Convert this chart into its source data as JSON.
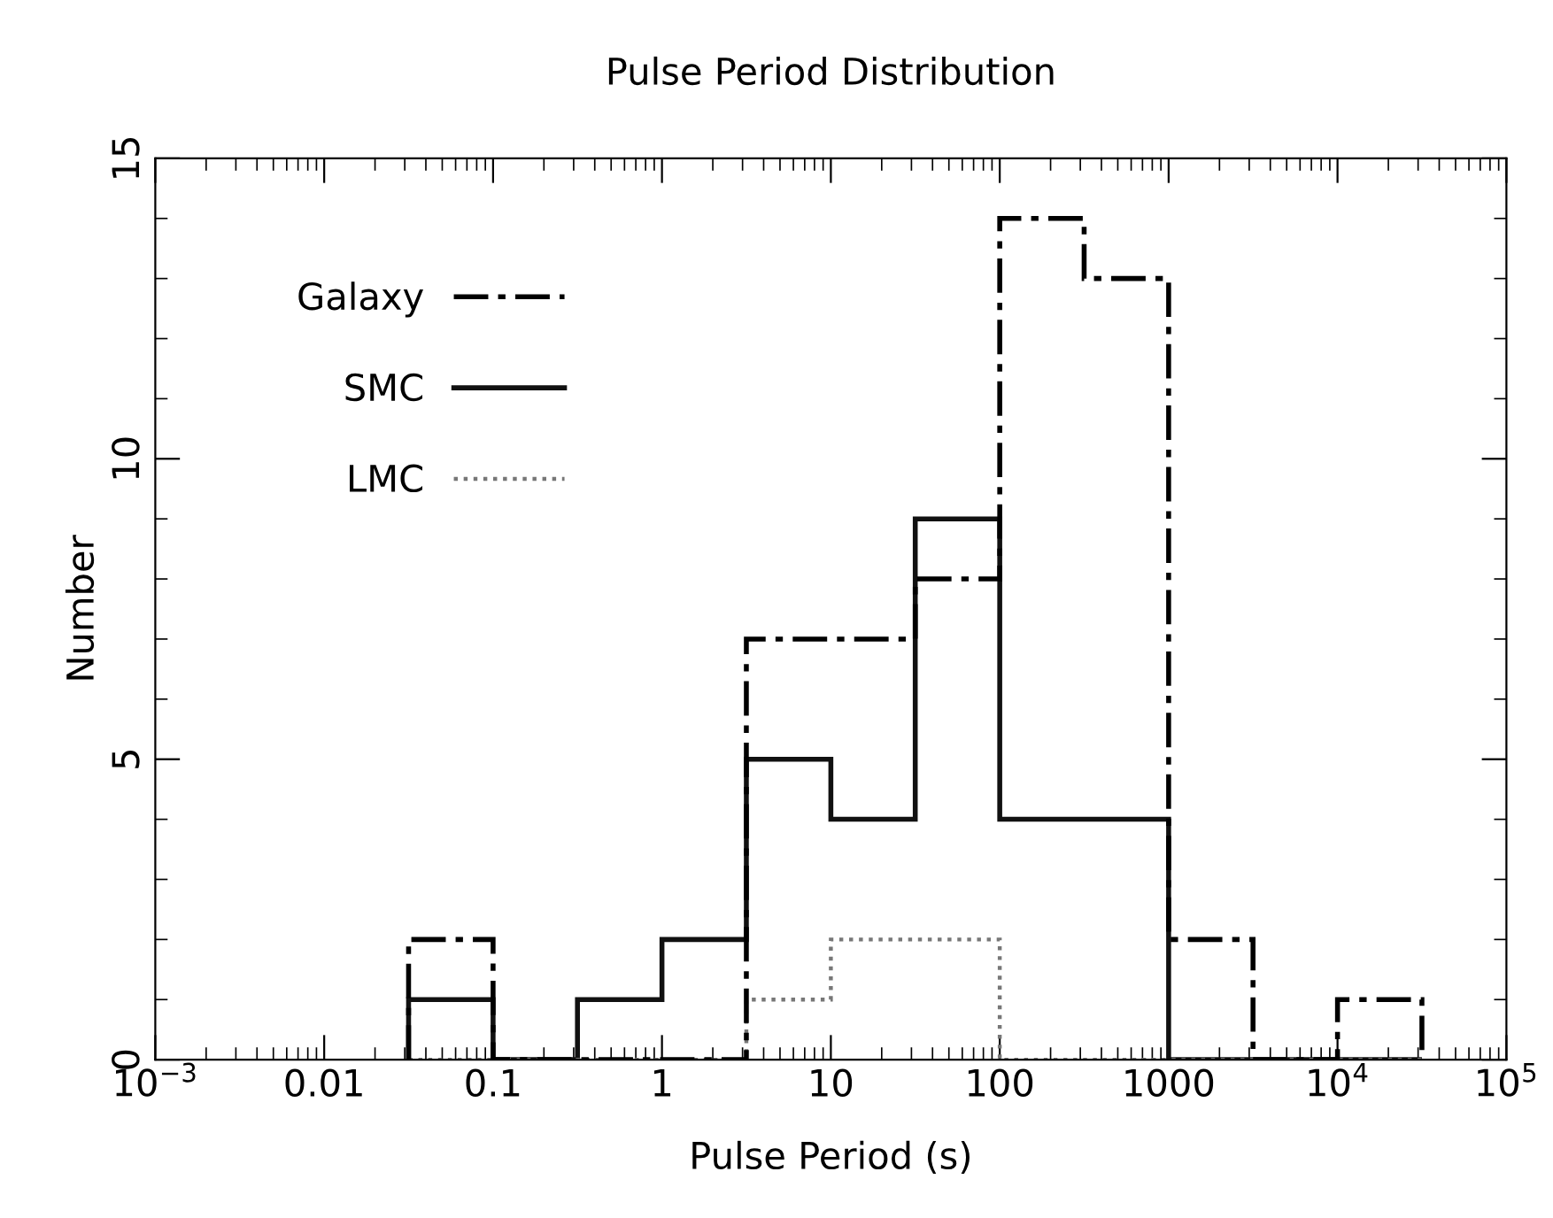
{
  "chart_data": {
    "type": "histogram",
    "title": "Pulse Period Distribution",
    "xlabel": "Pulse Period (s)",
    "ylabel": "Number",
    "log": "x",
    "bins": [
      0.0316,
      0.1,
      0.316,
      1,
      3.16,
      10,
      31.6,
      100,
      316,
      1000,
      3160,
      10000,
      31600
    ],
    "series": [
      {
        "name": "Galaxy",
        "color": "#000000",
        "line_style": "dashed",
        "values": [
          2,
          0,
          0,
          0,
          7,
          7,
          8,
          14,
          13,
          2,
          0,
          1
        ]
      },
      {
        "name": "SMC",
        "color": "#111111",
        "line_style": "solid",
        "values": [
          1,
          0,
          1,
          2,
          5,
          4,
          9,
          4,
          4,
          0,
          0,
          0
        ]
      },
      {
        "name": "LMC",
        "color": "#777777",
        "line_style": "dotted",
        "values": [
          0,
          0,
          0,
          0,
          1,
          2,
          2,
          0,
          0,
          0,
          0,
          0
        ]
      }
    ],
    "xlim": [
      0.001,
      100000
    ],
    "ylim": [
      0,
      15
    ],
    "xticks": [
      {
        "value": 0.001,
        "label": "10$^{−3}$"
      },
      0.01,
      0.1,
      1,
      10,
      100,
      1000,
      {
        "value": 10000,
        "label": "10$^{4}$"
      },
      {
        "value": 100000,
        "label": "10$^{5}$"
      }
    ],
    "yticks": [
      0,
      5,
      10,
      15
    ],
    "grid": false,
    "legend": "top left"
  }
}
